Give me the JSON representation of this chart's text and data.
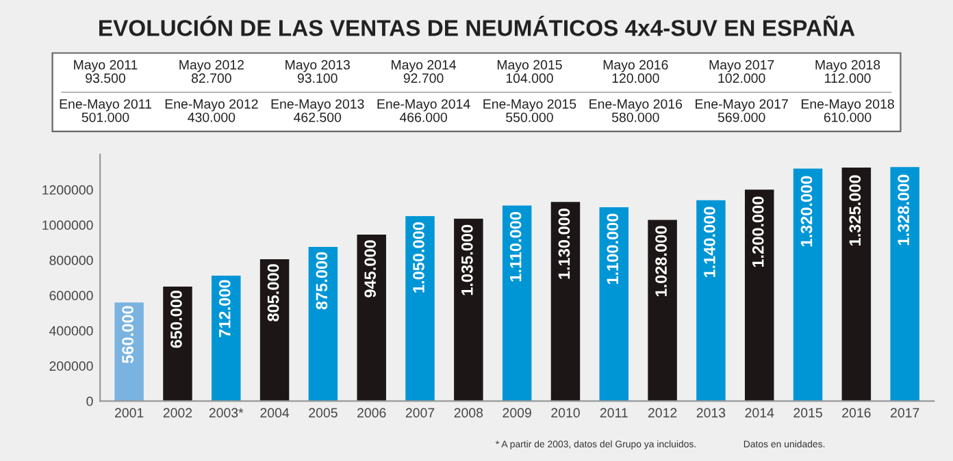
{
  "chart_data": {
    "type": "bar",
    "title": "EVOLUCIÓN DE LAS VENTAS DE NEUMÁTICOS 4x4-SUV EN ESPAÑA",
    "categories": [
      "2001",
      "2002",
      "2003*",
      "2004",
      "2005",
      "2006",
      "2007",
      "2008",
      "2009",
      "2010",
      "2011",
      "2012",
      "2013",
      "2014",
      "2015",
      "2016",
      "2017"
    ],
    "values": [
      560000,
      650000,
      712000,
      805000,
      875000,
      945000,
      1050000,
      1035000,
      1110000,
      1130000,
      1100000,
      1028000,
      1140000,
      1200000,
      1320000,
      1325000,
      1328000
    ],
    "value_labels": [
      "560.000",
      "650.000",
      "712.000",
      "805.000",
      "875.000",
      "945.000",
      "1.050.000",
      "1.035.000",
      "1.110.000",
      "1.130.000",
      "1.100.000",
      "1.028.000",
      "1.140.000",
      "1.200.000",
      "1.320.000",
      "1.325.000",
      "1.328.000"
    ],
    "colors": [
      "#7ab3df",
      "#1c1716",
      "#0096d6",
      "#1c1716",
      "#0096d6",
      "#1c1716",
      "#0096d6",
      "#1c1716",
      "#0096d6",
      "#1c1716",
      "#0096d6",
      "#1c1716",
      "#0096d6",
      "#1c1716",
      "#0096d6",
      "#1c1716",
      "#0096d6"
    ],
    "ylim": [
      0,
      1400000
    ],
    "yticks": [
      0,
      200000,
      400000,
      600000,
      800000,
      1000000,
      1200000
    ],
    "grid": false,
    "legend": false,
    "annotations": [
      "Mayo 2011\n93.500",
      "Mayo 2012\n82.700",
      "Mayo 2013\n93.100",
      "Mayo 2014\n92.700",
      "Mayo 2015\n104.000",
      "Mayo 2016\n120.000",
      "Mayo 2017\n102.000",
      "Mayo 2018\n112.000",
      "Ene-Mayo 2011\n501.000",
      "Ene-Mayo 2012\n430.000",
      "Ene-Mayo 2013\n462.500",
      "Ene-Mayo 2014\n466.000",
      "Ene-Mayo 2015\n550.000",
      "Ene-Mayo 2016\n580.000",
      "Ene-Mayo 2017\n569.000",
      "Ene-Mayo 2018\n610.000",
      "* A partir de 2003, datos del Grupo ya incluidos.",
      "Datos en unidades."
    ]
  }
}
